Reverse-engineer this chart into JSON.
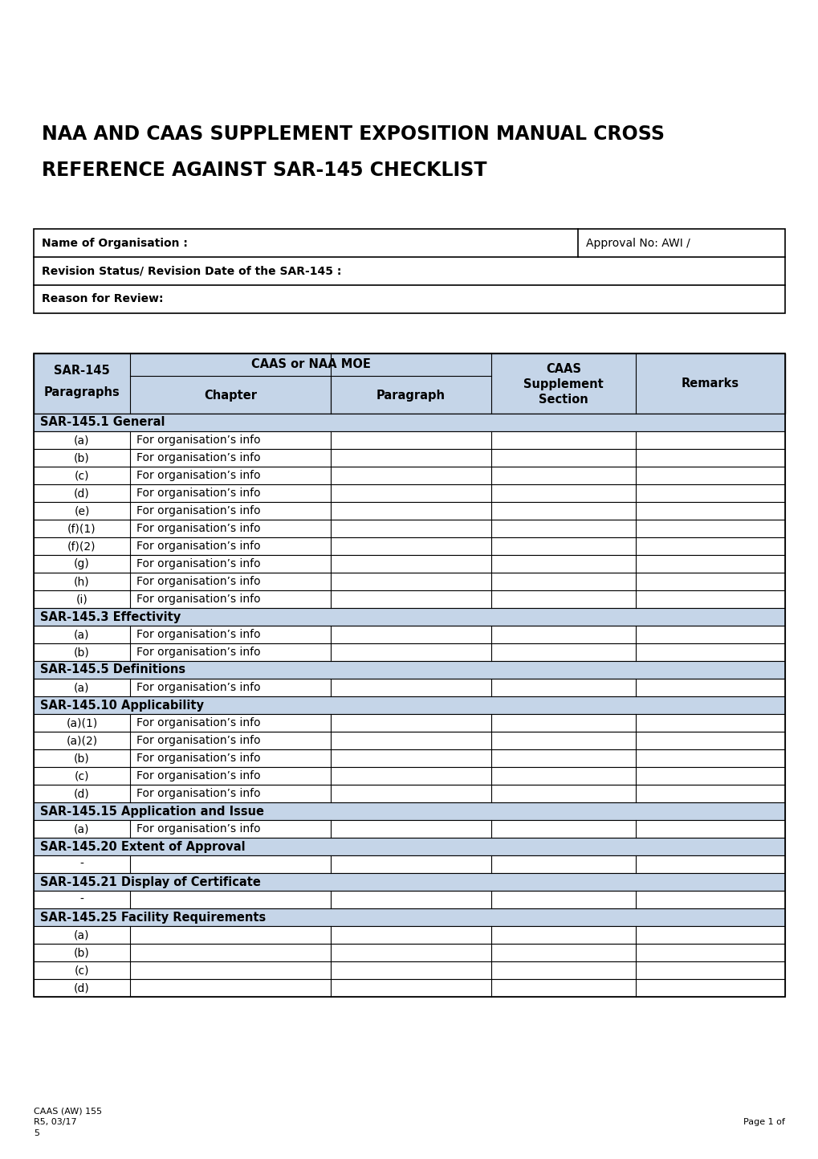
{
  "title_line1": "NAA AND CAAS SUPPLEMENT EXPOSITION MANUAL CROSS",
  "title_line2": "REFERENCE AGAINST SAR-145 CHECKLIST",
  "info_rows": [
    {
      "label": "Name of Organisation :",
      "right": "Approval No: AWI /"
    },
    {
      "label": "Revision Status/ Revision Date of the SAR-145 :"
    },
    {
      "label": "Reason for Review:"
    }
  ],
  "header_bg": "#c5d5e8",
  "section_bg": "#c5d5e8",
  "sections": [
    {
      "type": "section_header",
      "text": "SAR-145.1 General"
    },
    {
      "type": "data_row",
      "col0": "(a)",
      "col1": "For organisation’s info"
    },
    {
      "type": "data_row",
      "col0": "(b)",
      "col1": "For organisation’s info"
    },
    {
      "type": "data_row",
      "col0": "(c)",
      "col1": "For organisation’s info"
    },
    {
      "type": "data_row",
      "col0": "(d)",
      "col1": "For organisation’s info"
    },
    {
      "type": "data_row",
      "col0": "(e)",
      "col1": "For organisation’s info"
    },
    {
      "type": "data_row",
      "col0": "(f)(1)",
      "col1": "For organisation’s info"
    },
    {
      "type": "data_row",
      "col0": "(f)(2)",
      "col1": "For organisation’s info"
    },
    {
      "type": "data_row",
      "col0": "(g)",
      "col1": "For organisation’s info"
    },
    {
      "type": "data_row",
      "col0": "(h)",
      "col1": "For organisation’s info"
    },
    {
      "type": "data_row",
      "col0": "(i)",
      "col1": "For organisation’s info"
    },
    {
      "type": "section_header",
      "text": "SAR-145.3 Effectivity"
    },
    {
      "type": "data_row",
      "col0": "(a)",
      "col1": "For organisation’s info"
    },
    {
      "type": "data_row",
      "col0": "(b)",
      "col1": "For organisation’s info"
    },
    {
      "type": "section_header",
      "text": "SAR-145.5 Definitions"
    },
    {
      "type": "data_row",
      "col0": "(a)",
      "col1": "For organisation’s info"
    },
    {
      "type": "section_header",
      "text": "SAR-145.10 Applicability"
    },
    {
      "type": "data_row",
      "col0": "(a)(1)",
      "col1": "For organisation’s info"
    },
    {
      "type": "data_row",
      "col0": "(a)(2)",
      "col1": "For organisation’s info"
    },
    {
      "type": "data_row",
      "col0": "(b)",
      "col1": "For organisation’s info"
    },
    {
      "type": "data_row",
      "col0": "(c)",
      "col1": "For organisation’s info"
    },
    {
      "type": "data_row",
      "col0": "(d)",
      "col1": "For organisation’s info"
    },
    {
      "type": "section_header",
      "text": "SAR-145.15 Application and Issue"
    },
    {
      "type": "data_row",
      "col0": "(a)",
      "col1": "For organisation’s info"
    },
    {
      "type": "section_header",
      "text": "SAR-145.20 Extent of Approval"
    },
    {
      "type": "data_row",
      "col0": "-",
      "col1": ""
    },
    {
      "type": "section_header",
      "text": "SAR-145.21 Display of Certificate"
    },
    {
      "type": "data_row",
      "col0": "-",
      "col1": ""
    },
    {
      "type": "section_header",
      "text": "SAR-145.25 Facility Requirements"
    },
    {
      "type": "data_row",
      "col0": "(a)",
      "col1": ""
    },
    {
      "type": "data_row",
      "col0": "(b)",
      "col1": ""
    },
    {
      "type": "data_row",
      "col0": "(c)",
      "col1": ""
    },
    {
      "type": "data_row",
      "col0": "(d)",
      "col1": ""
    }
  ],
  "footer_left_line1": "CAAS (AW) 155",
  "footer_left_line2": "R5, 03/17",
  "footer_left_line3": "5",
  "footer_right": "Page 1 of"
}
